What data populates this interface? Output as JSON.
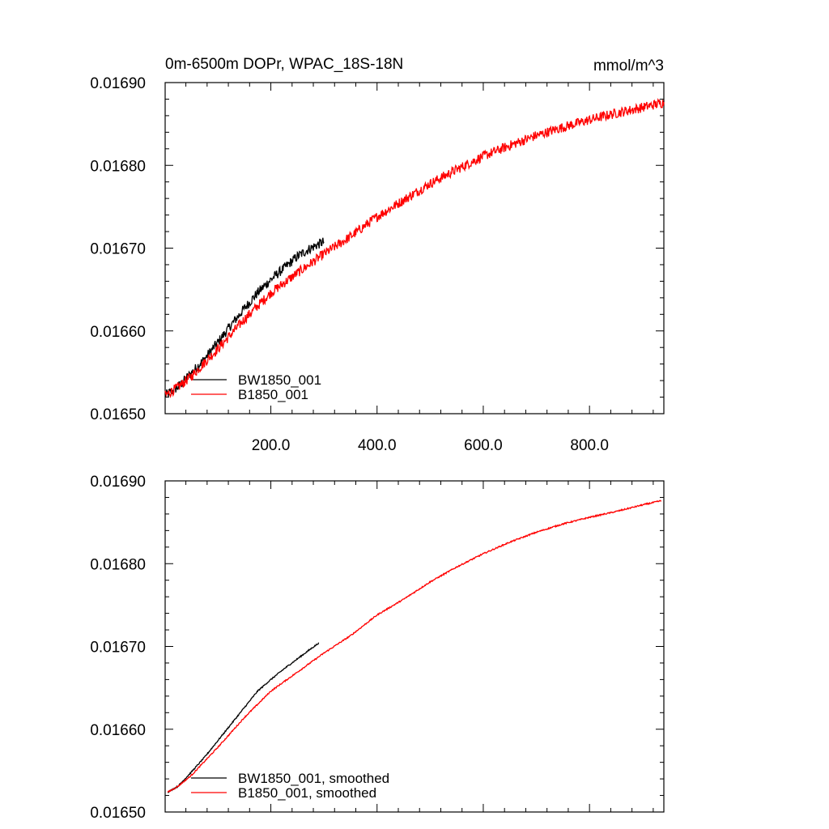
{
  "chart_data": [
    {
      "type": "line",
      "title": "0m-6500m DOPr, WPAC_18S-18N",
      "units": "mmol/m^3",
      "xlim": [
        1,
        940
      ],
      "ylim": [
        0.0165,
        0.0169
      ],
      "xticks": [
        200,
        400,
        600,
        800
      ],
      "xtick_labels": [
        "200.0",
        "400.0",
        "600.0",
        "800.0"
      ],
      "yticks": [
        0.0165,
        0.0166,
        0.0167,
        0.0168,
        0.0169
      ],
      "ytick_labels": [
        "0.01650",
        "0.01660",
        "0.01670",
        "0.01680",
        "0.01690"
      ],
      "legend_position": "lower-left",
      "series": [
        {
          "name": "BW1850_001",
          "color": "#000000",
          "noise": 6e-06,
          "x": [
            1,
            25,
            50,
            75,
            100,
            125,
            150,
            175,
            200,
            225,
            250,
            275,
            300
          ],
          "y": [
            0.016522,
            0.016532,
            0.016549,
            0.016566,
            0.016586,
            0.016607,
            0.016627,
            0.016646,
            0.016662,
            0.016676,
            0.01669,
            0.0167,
            0.016708
          ]
        },
        {
          "name": "B1850_001",
          "color": "#ff0000",
          "noise": 6e-06,
          "x": [
            1,
            25,
            50,
            100,
            150,
            200,
            250,
            300,
            350,
            400,
            450,
            500,
            550,
            600,
            650,
            700,
            750,
            800,
            850,
            900,
            940
          ],
          "y": [
            0.016522,
            0.016532,
            0.016545,
            0.016578,
            0.016614,
            0.016646,
            0.01667,
            0.016693,
            0.016714,
            0.016738,
            0.016758,
            0.016778,
            0.016795,
            0.016811,
            0.016824,
            0.016836,
            0.016846,
            0.016855,
            0.016863,
            0.01687,
            0.016876
          ]
        }
      ]
    },
    {
      "type": "line",
      "xlim": [
        1,
        940
      ],
      "ylim": [
        0.0165,
        0.0169
      ],
      "yticks": [
        0.0165,
        0.0166,
        0.0167,
        0.0168,
        0.0169
      ],
      "ytick_labels": [
        "0.01650",
        "0.01660",
        "0.01670",
        "0.01680",
        "0.01690"
      ],
      "legend_position": "lower-left",
      "series": [
        {
          "name": "BW1850_001, smoothed",
          "color": "#000000",
          "noise": 8e-07,
          "x": [
            6,
            25,
            50,
            75,
            100,
            125,
            150,
            175,
            200,
            225,
            250,
            275,
            290
          ],
          "y": [
            0.016524,
            0.016531,
            0.016548,
            0.016566,
            0.016586,
            0.016606,
            0.016626,
            0.016646,
            0.01666,
            0.016673,
            0.016685,
            0.016697,
            0.016704
          ]
        },
        {
          "name": "B1850_001, smoothed",
          "color": "#ff0000",
          "noise": 8e-07,
          "x": [
            6,
            25,
            50,
            100,
            150,
            200,
            250,
            300,
            350,
            400,
            450,
            500,
            550,
            600,
            650,
            700,
            750,
            800,
            850,
            900,
            935
          ],
          "y": [
            0.016524,
            0.016531,
            0.016544,
            0.016578,
            0.016614,
            0.016646,
            0.016669,
            0.016692,
            0.016713,
            0.016738,
            0.016757,
            0.016778,
            0.016796,
            0.016812,
            0.016826,
            0.016838,
            0.016848,
            0.016856,
            0.016863,
            0.016871,
            0.016876
          ]
        }
      ]
    }
  ]
}
